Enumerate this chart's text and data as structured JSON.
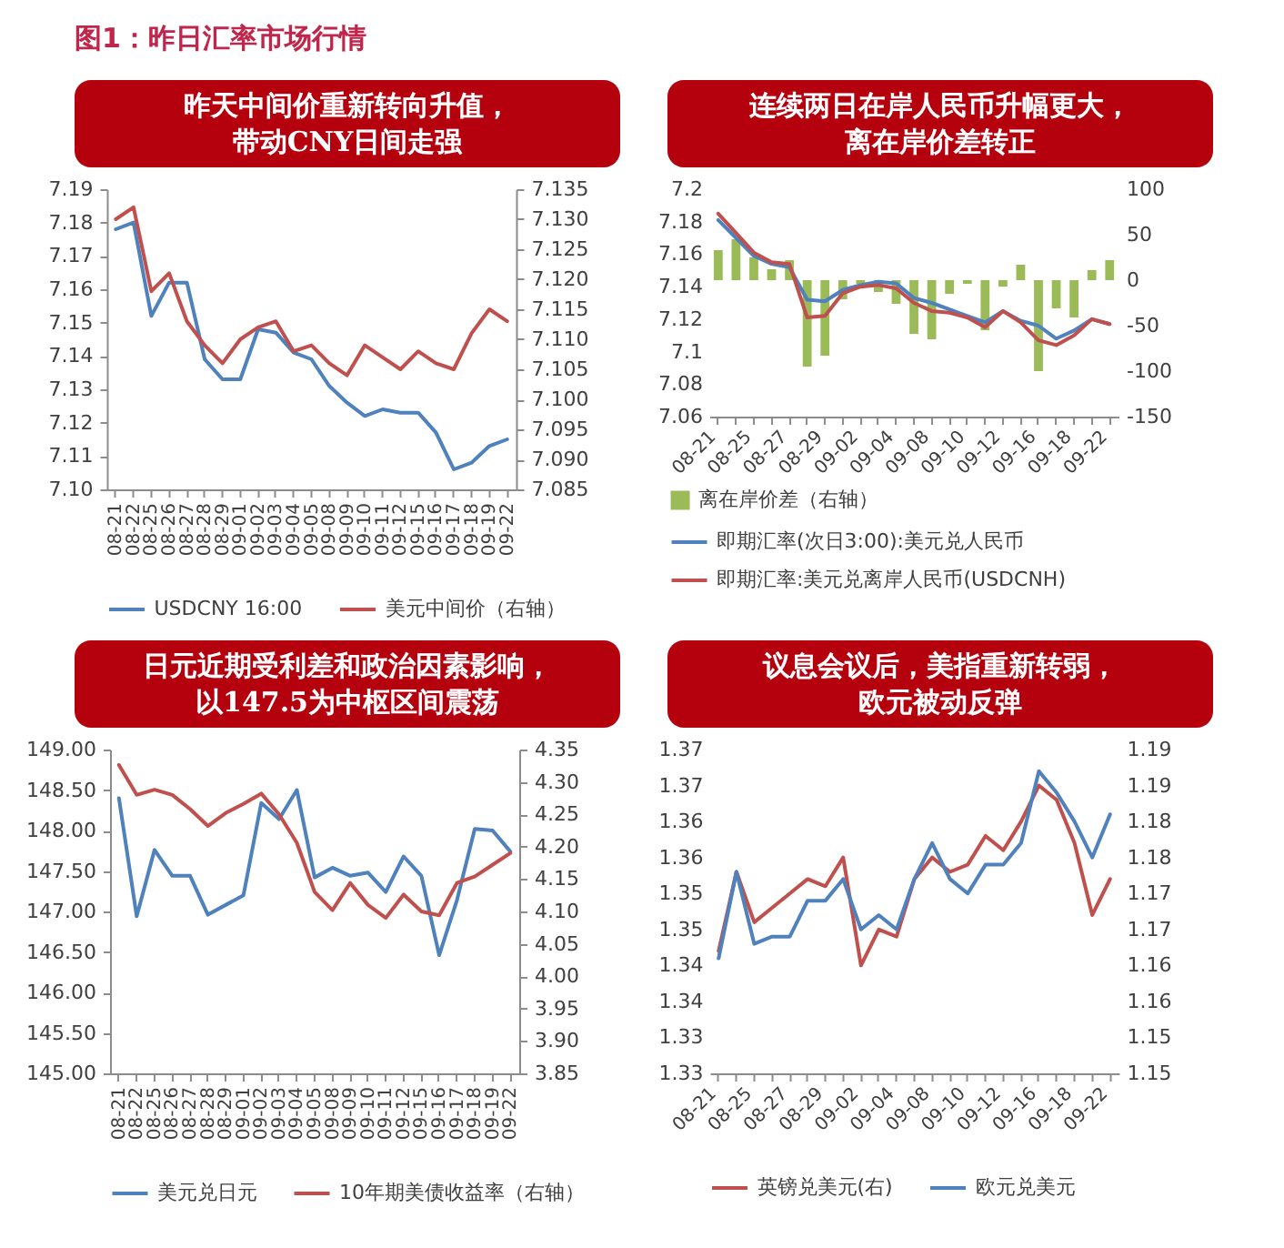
{
  "chart_data": [
    {
      "type": "other",
      "title": "图1：昨日汇率市场行情"
    },
    {
      "type": "line",
      "title": "昨天中间价重新转向升值，带动CNY日间走强",
      "categories": [
        "08-21",
        "08-22",
        "08-25",
        "08-26",
        "08-27",
        "08-28",
        "08-29",
        "09-01",
        "09-02",
        "09-03",
        "09-04",
        "09-05",
        "09-08",
        "09-09",
        "09-10",
        "09-11",
        "09-12",
        "09-15",
        "09-16",
        "09-17",
        "09-18",
        "09-19",
        "09-22"
      ],
      "series": [
        {
          "name": "USDCNY 16:00",
          "color": "#4f81bd",
          "values": [
            7.178,
            7.18,
            7.152,
            7.162,
            7.162,
            7.139,
            7.133,
            7.133,
            7.148,
            7.147,
            7.141,
            7.139,
            7.131,
            7.126,
            7.122,
            7.124,
            7.123,
            7.123,
            7.117,
            7.106,
            7.108,
            7.113,
            7.115
          ]
        },
        {
          "name": "美元中间价（右轴）",
          "color": "#c0504d",
          "axis": "y2",
          "values": [
            7.13,
            7.132,
            7.118,
            7.121,
            7.113,
            7.109,
            7.106,
            7.11,
            7.112,
            7.113,
            7.108,
            7.109,
            7.106,
            7.104,
            7.109,
            7.107,
            7.105,
            7.108,
            7.106,
            7.105,
            7.111,
            7.115,
            7.113
          ]
        }
      ],
      "ylim": [
        7.1,
        7.19
      ],
      "yticks": [
        {
          "value": 7.1,
          "label": "7.10"
        },
        7.11,
        7.12,
        7.13,
        7.14,
        7.15,
        7.16,
        7.17,
        7.18,
        7.19
      ],
      "y2lim": [
        7.085,
        7.135
      ],
      "y2ticks": [
        7.085,
        {
          "value": 7.09,
          "label": "7.090"
        },
        7.095,
        {
          "value": 7.1,
          "label": "7.100"
        },
        7.105,
        {
          "value": 7.11,
          "label": "7.110"
        },
        7.115,
        {
          "value": 7.12,
          "label": "7.120"
        },
        7.125,
        {
          "value": 7.13,
          "label": "7.130"
        },
        7.135
      ],
      "legend": "bottom"
    },
    {
      "type": "line",
      "title": "连续两日在岸人民币升幅更大，离在岸价差转正",
      "categories": [
        "08-21",
        null,
        "08-25",
        null,
        "08-27",
        null,
        "08-29",
        null,
        "09-02",
        null,
        "09-04",
        null,
        "09-08",
        null,
        "09-10",
        null,
        "09-12",
        null,
        "09-16",
        null,
        "09-18",
        null,
        "09-22"
      ],
      "series": [
        {
          "name": "离在岸价差（右轴）",
          "type": "bar",
          "color": "#9bbb59",
          "axis": "y2",
          "values": [
            33,
            45,
            25,
            12,
            22,
            -95,
            -83,
            -21,
            -4,
            -13,
            -26,
            -59,
            -65,
            -15,
            -4,
            -55,
            -7,
            17,
            -100,
            -31,
            -41,
            11,
            22
          ]
        },
        {
          "name": "即期汇率(次日3:00):美元兑人民币",
          "color": "#4f81bd",
          "values": [
            7.181,
            7.17,
            7.159,
            7.154,
            7.152,
            7.132,
            7.131,
            7.138,
            7.141,
            7.143,
            7.142,
            7.133,
            7.13,
            7.126,
            7.122,
            7.118,
            7.125,
            7.119,
            7.116,
            7.108,
            7.113,
            7.12,
            7.117
          ]
        },
        {
          "name": "即期汇率:美元兑离岸人民币(USDCNH)",
          "color": "#c0504d",
          "values": [
            7.185,
            7.173,
            7.161,
            7.155,
            7.154,
            7.121,
            7.122,
            7.136,
            7.14,
            7.141,
            7.139,
            7.13,
            7.125,
            7.124,
            7.121,
            7.115,
            7.125,
            7.118,
            7.107,
            7.104,
            7.11,
            7.12,
            7.117
          ]
        }
      ],
      "ylim": [
        7.06,
        7.2
      ],
      "yticks": [
        7.06,
        7.08,
        7.1,
        7.12,
        7.14,
        7.16,
        7.18,
        7.2
      ],
      "y2lim": [
        -150,
        100
      ],
      "y2ticks": [
        -150,
        -100,
        -50,
        0,
        50,
        100
      ],
      "legend": "bottom"
    },
    {
      "type": "line",
      "title": "日元近期受利差和政治因素影响，以147.5为中枢区间震荡",
      "categories": [
        "08-21",
        "08-22",
        "08-25",
        "08-26",
        "08-27",
        "08-28",
        "08-29",
        "09-01",
        "09-02",
        "09-03",
        "09-04",
        "09-05",
        "09-08",
        "09-09",
        "09-10",
        "09-11",
        "09-12",
        "09-15",
        "09-16",
        "09-17",
        "09-18",
        "09-19",
        "09-22"
      ],
      "series": [
        {
          "name": "美元兑日元",
          "color": "#4f81bd",
          "values": [
            148.4,
            146.94,
            147.76,
            147.44,
            147.44,
            146.96,
            147.08,
            147.2,
            148.34,
            148.14,
            148.5,
            147.42,
            147.54,
            147.44,
            147.48,
            147.24,
            147.68,
            147.44,
            146.46,
            147.14,
            148.02,
            148.0,
            147.74
          ]
        },
        {
          "name": "10年期美债收益率（右轴）",
          "color": "#c0504d",
          "axis": "y2",
          "values": [
            4.326,
            4.28,
            4.288,
            4.28,
            4.258,
            4.232,
            4.252,
            4.266,
            4.282,
            4.25,
            4.206,
            4.13,
            4.102,
            4.144,
            4.11,
            4.09,
            4.126,
            4.1,
            4.094,
            4.144,
            4.154,
            4.172,
            4.19
          ]
        }
      ],
      "ylim": [
        145,
        149
      ],
      "yticks": [
        {
          "value": 145,
          "label": "145.00"
        },
        {
          "value": 145.5,
          "label": "145.50"
        },
        {
          "value": 146,
          "label": "146.00"
        },
        {
          "value": 146.5,
          "label": "146.50"
        },
        {
          "value": 147,
          "label": "147.00"
        },
        {
          "value": 147.5,
          "label": "147.50"
        },
        {
          "value": 148,
          "label": "148.00"
        },
        {
          "value": 148.5,
          "label": "148.50"
        },
        {
          "value": 149,
          "label": "149.00"
        }
      ],
      "y2lim": [
        3.85,
        4.35
      ],
      "y2ticks": [
        3.85,
        {
          "value": 3.9,
          "label": "3.90"
        },
        3.95,
        {
          "value": 4,
          "label": "4.00"
        },
        4.05,
        {
          "value": 4.1,
          "label": "4.10"
        },
        4.15,
        {
          "value": 4.2,
          "label": "4.20"
        },
        4.25,
        {
          "value": 4.3,
          "label": "4.30"
        },
        4.35
      ],
      "legend": "bottom"
    },
    {
      "type": "line",
      "title": "议息会议后，美指重新转弱，欧元被动反弹",
      "categories": [
        "08-21",
        null,
        "08-25",
        null,
        "08-27",
        null,
        "08-29",
        null,
        "09-02",
        null,
        "09-04",
        null,
        "09-08",
        null,
        "09-10",
        null,
        "09-12",
        null,
        "09-16",
        null,
        "09-18",
        null,
        "09-22"
      ],
      "series": [
        {
          "name": "英镑兑美元(右)",
          "color": "#c0504d",
          "axis": "y2",
          "values": [
            1.162,
            1.173,
            1.166,
            1.168,
            1.17,
            1.172,
            1.171,
            1.175,
            1.16,
            1.165,
            1.164,
            1.172,
            1.175,
            1.173,
            1.174,
            1.178,
            1.176,
            1.18,
            1.185,
            1.183,
            1.177,
            1.167,
            1.172
          ]
        },
        {
          "name": "欧元兑美元",
          "color": "#4f81bd",
          "values": [
            1.341,
            1.353,
            1.343,
            1.344,
            1.344,
            1.349,
            1.349,
            1.352,
            1.345,
            1.347,
            1.345,
            1.352,
            1.357,
            1.352,
            1.35,
            1.354,
            1.354,
            1.357,
            1.367,
            1.364,
            1.36,
            1.355,
            1.361
          ]
        }
      ],
      "ylim": [
        1.325,
        1.37
      ],
      "yticks": [
        {
          "value": 1.325,
          "label": "1.33"
        },
        1.33,
        {
          "value": 1.335,
          "label": "1.34"
        },
        1.34,
        {
          "value": 1.345,
          "label": "1.35"
        },
        1.35,
        {
          "value": 1.355,
          "label": "1.36"
        },
        1.36,
        {
          "value": 1.365,
          "label": "1.37"
        },
        1.37
      ],
      "y2lim": [
        1.145,
        1.19
      ],
      "y2ticks": [
        {
          "value": 1.145,
          "label": "1.15"
        },
        1.15,
        {
          "value": 1.155,
          "label": "1.16"
        },
        1.16,
        {
          "value": 1.165,
          "label": "1.17"
        },
        1.17,
        {
          "value": 1.175,
          "label": "1.18"
        },
        1.18,
        {
          "value": 1.185,
          "label": "1.19"
        },
        1.19
      ],
      "legend": "bottom"
    }
  ]
}
